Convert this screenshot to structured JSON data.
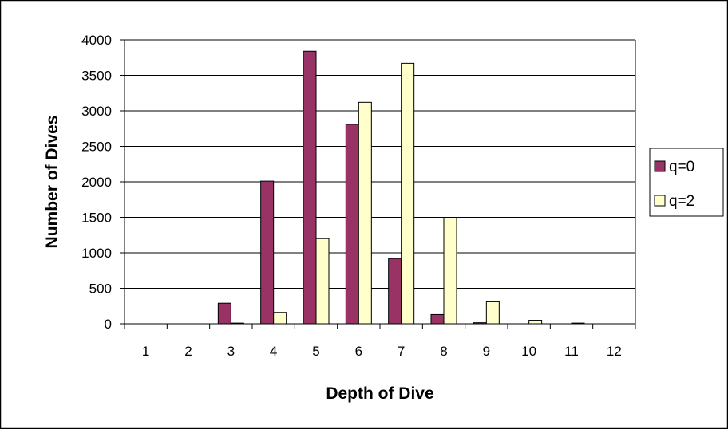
{
  "chart_data": {
    "type": "bar",
    "title": "",
    "xlabel": "Depth of Dive",
    "ylabel": "Number of Dives",
    "categories": [
      "1",
      "2",
      "3",
      "4",
      "5",
      "6",
      "7",
      "8",
      "9",
      "10",
      "11",
      "12"
    ],
    "ylim": [
      0,
      4000
    ],
    "yticks": [
      0,
      500,
      1000,
      1500,
      2000,
      2500,
      3000,
      3500,
      4000
    ],
    "grid": true,
    "legend_position": "right",
    "series": [
      {
        "name": "q=0",
        "color": "#993366",
        "values": [
          0,
          0,
          290,
          2010,
          3840,
          2810,
          920,
          130,
          15,
          0,
          0,
          0
        ]
      },
      {
        "name": "q=2",
        "color": "#FFFFCC",
        "values": [
          0,
          0,
          10,
          160,
          1200,
          3120,
          3670,
          1490,
          310,
          50,
          10,
          0
        ]
      }
    ]
  }
}
